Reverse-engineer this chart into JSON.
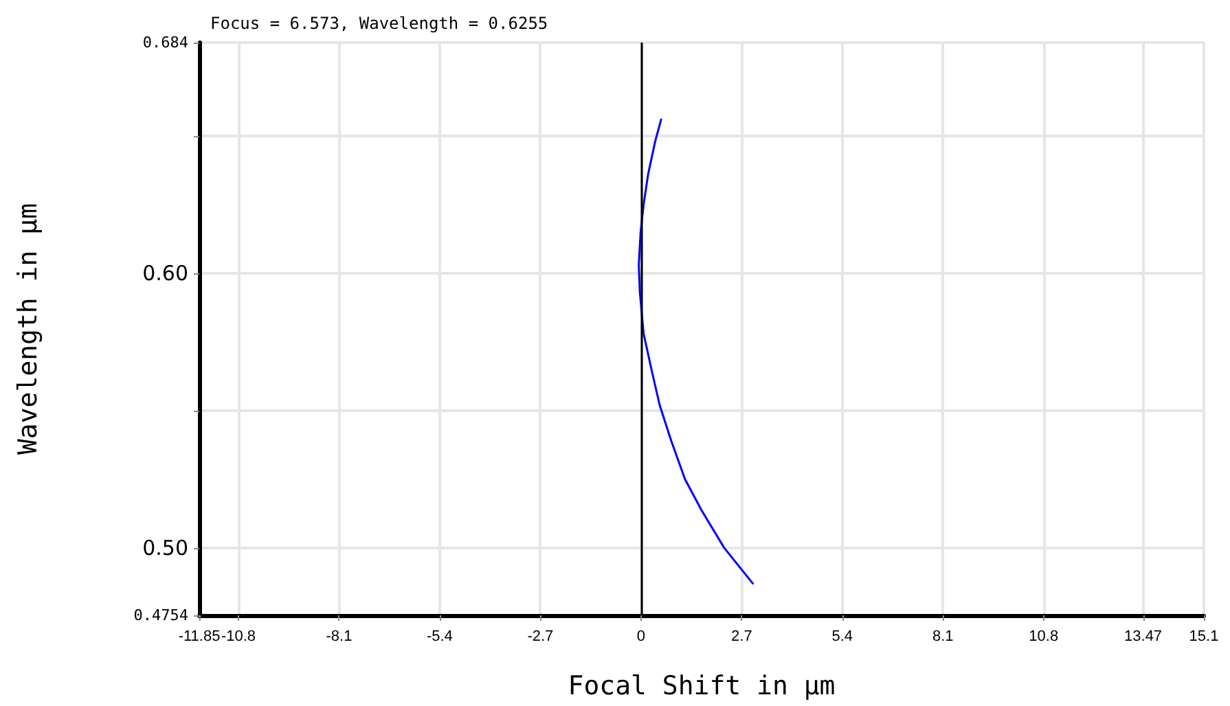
{
  "chart_data": {
    "type": "line",
    "title": "Focus = 6.573, Wavelength = 0.6255",
    "xlabel": "Focal Shift in µm",
    "ylabel": "Wavelength in µm",
    "series": [
      {
        "color": "#0000ff",
        "x": [
          0.54,
          0.38,
          0.19,
          0.07,
          -0.01,
          -0.06,
          -0.03,
          0.07,
          0.28,
          0.5,
          0.81,
          1.18,
          1.61,
          2.23,
          3.0
        ],
        "values": [
          0.656,
          0.648,
          0.636,
          0.625,
          0.615,
          0.603,
          0.593,
          0.578,
          0.565,
          0.552,
          0.539,
          0.525,
          0.514,
          0.5,
          0.487
        ]
      }
    ],
    "xlim": [
      -11.85,
      15.1
    ],
    "xticks": [
      -11.85,
      -10.8,
      -8.1,
      -5.4,
      -2.7,
      0,
      2.7,
      5.4,
      8.1,
      10.8,
      13.47,
      15.1
    ],
    "ylim": [
      0.4754,
      0.684
    ],
    "yticks": [
      0.4754,
      {
        "value": 0.5,
        "label": "0.50"
      },
      {
        "value": 0.55,
        "label": null
      },
      {
        "value": 0.6,
        "label": "0.60"
      },
      {
        "value": 0.65,
        "label": null
      },
      0.684
    ],
    "ref_lines": [
      {
        "axis": "x",
        "value": 0,
        "color": "#000000"
      }
    ],
    "grid": true,
    "marker": "none",
    "line_style": "solid"
  }
}
